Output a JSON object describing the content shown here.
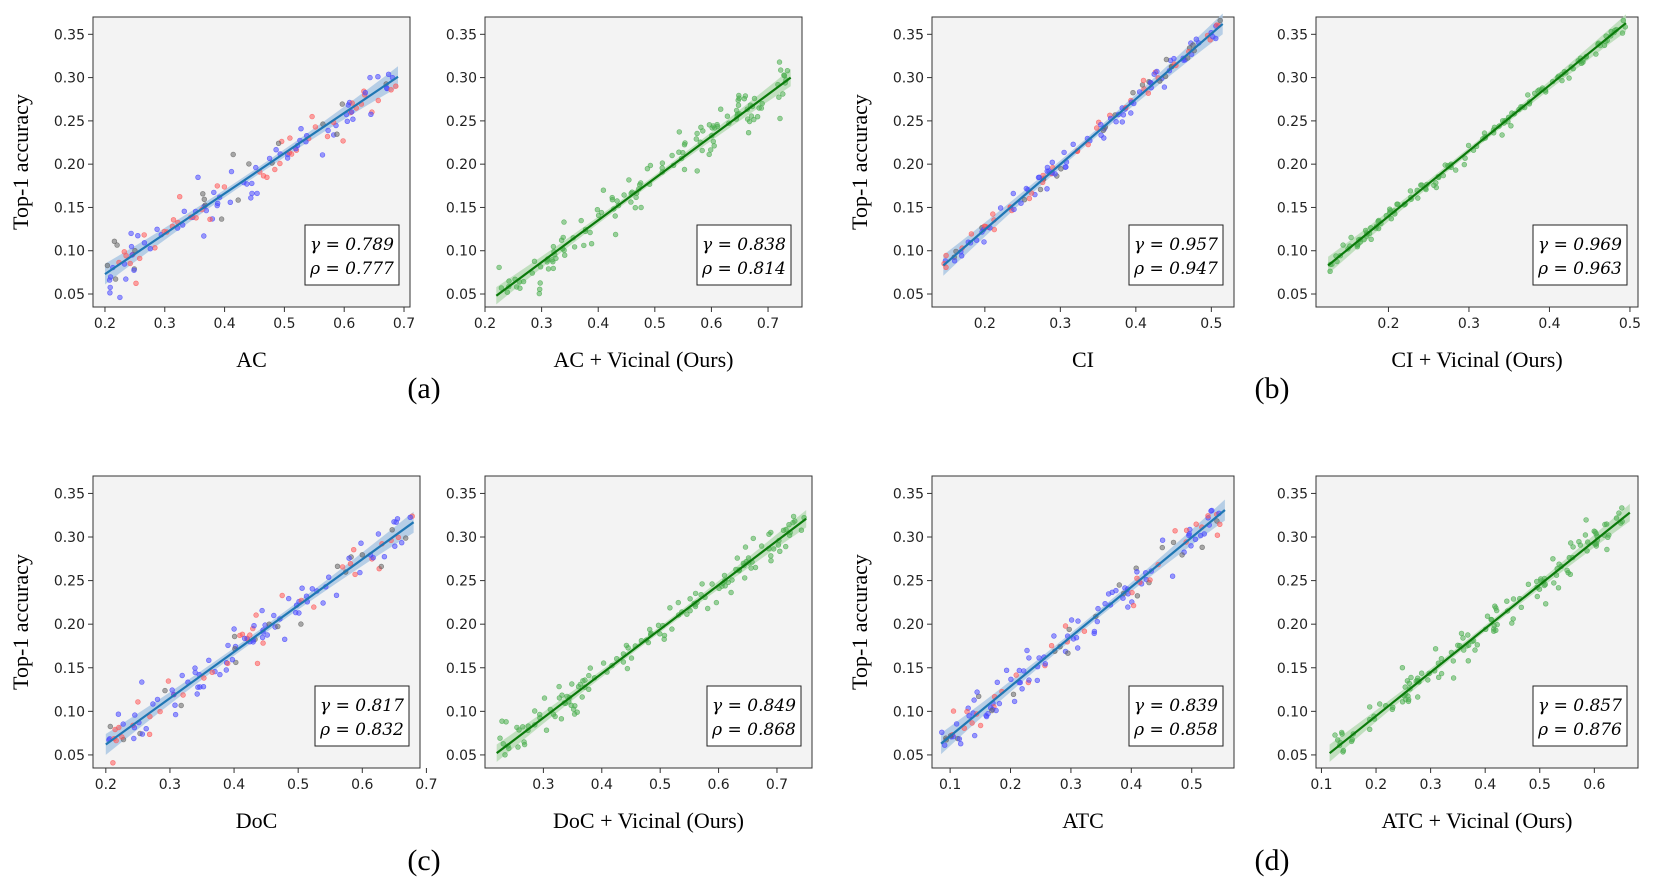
{
  "figure": {
    "panel_labels": [
      "(a)",
      "(b)",
      "(c)",
      "(d)"
    ],
    "y_axis_label": "Top-1 accuracy",
    "colors": {
      "baseline_fit": "#1f77b4",
      "baseline_band": "#aac7e3",
      "vicinal_fit": "#0b7a0b",
      "vicinal_band": "#b7dbb5",
      "points_blue": "#4a4aff",
      "points_red": "#ff5a5a",
      "points_gray": "#666666",
      "points_green": "#4caf50",
      "panel_bg": "#f3f3f3"
    }
  },
  "chart_data": [
    {
      "type": "scatter",
      "xlabel": "AC",
      "ylabel": "Top-1 accuracy",
      "xlim": [
        0.18,
        0.71
      ],
      "ylim": [
        0.035,
        0.37
      ],
      "xticks": [
        0.2,
        0.3,
        0.4,
        0.5,
        0.6,
        0.7
      ],
      "xtick_labels": [
        "0.2",
        "0.3",
        "0.4",
        "0.5",
        "0.6",
        "0.7"
      ],
      "yticks": [
        0.05,
        0.1,
        0.15,
        0.2,
        0.25,
        0.3,
        0.35
      ],
      "ytick_labels": [
        "0.05",
        "0.10",
        "0.15",
        "0.20",
        "0.25",
        "0.30",
        "0.35"
      ],
      "fit": {
        "x": [
          0.2,
          0.69
        ],
        "y": [
          0.073,
          0.301
        ]
      },
      "gamma": "0.789",
      "rho": "0.777",
      "stats": [
        "γ = 0.789",
        "ρ = 0.777"
      ],
      "style": "baseline",
      "seed": 11
    },
    {
      "type": "scatter",
      "xlabel": "AC + Vicinal (Ours)",
      "ylabel": "",
      "xlim": [
        0.2,
        0.76
      ],
      "ylim": [
        0.035,
        0.37
      ],
      "xticks": [
        0.2,
        0.3,
        0.4,
        0.5,
        0.6,
        0.7
      ],
      "xtick_labels": [
        "0.2",
        "0.3",
        "0.4",
        "0.5",
        "0.6",
        "0.7"
      ],
      "yticks": [
        0.05,
        0.1,
        0.15,
        0.2,
        0.25,
        0.3,
        0.35
      ],
      "ytick_labels": [
        "0.05",
        "0.10",
        "0.15",
        "0.20",
        "0.25",
        "0.30",
        "0.35"
      ],
      "fit": {
        "x": [
          0.22,
          0.74
        ],
        "y": [
          0.048,
          0.3
        ]
      },
      "gamma": "0.838",
      "rho": "0.814",
      "stats": [
        "γ = 0.838",
        "ρ = 0.814"
      ],
      "style": "vicinal",
      "seed": 12
    },
    {
      "type": "scatter",
      "xlabel": "CI",
      "ylabel": "Top-1 accuracy",
      "xlim": [
        0.13,
        0.53
      ],
      "ylim": [
        0.035,
        0.37
      ],
      "xticks": [
        0.2,
        0.3,
        0.4,
        0.5
      ],
      "xtick_labels": [
        "0.2",
        "0.3",
        "0.4",
        "0.5"
      ],
      "yticks": [
        0.05,
        0.1,
        0.15,
        0.2,
        0.25,
        0.3,
        0.35
      ],
      "ytick_labels": [
        "0.05",
        "0.10",
        "0.15",
        "0.20",
        "0.25",
        "0.30",
        "0.35"
      ],
      "fit": {
        "x": [
          0.145,
          0.515
        ],
        "y": [
          0.083,
          0.362
        ]
      },
      "gamma": "0.957",
      "rho": "0.947",
      "stats": [
        "γ = 0.957",
        "ρ = 0.947"
      ],
      "style": "baseline",
      "seed": 13
    },
    {
      "type": "scatter",
      "xlabel": "CI + Vicinal (Ours)",
      "ylabel": "",
      "xlim": [
        0.11,
        0.51
      ],
      "ylim": [
        0.035,
        0.37
      ],
      "xticks": [
        0.2,
        0.3,
        0.4,
        0.5
      ],
      "xtick_labels": [
        "0.2",
        "0.3",
        "0.4",
        "0.5"
      ],
      "yticks": [
        0.05,
        0.1,
        0.15,
        0.2,
        0.25,
        0.3,
        0.35
      ],
      "ytick_labels": [
        "0.05",
        "0.10",
        "0.15",
        "0.20",
        "0.25",
        "0.30",
        "0.35"
      ],
      "fit": {
        "x": [
          0.125,
          0.495
        ],
        "y": [
          0.083,
          0.363
        ]
      },
      "gamma": "0.969",
      "rho": "0.963",
      "stats": [
        "γ = 0.969",
        "ρ = 0.963"
      ],
      "style": "vicinal",
      "seed": 14
    },
    {
      "type": "scatter",
      "xlabel": "DoC",
      "ylabel": "Top-1 accuracy",
      "xlim": [
        0.18,
        0.69
      ],
      "ylim": [
        0.035,
        0.37
      ],
      "xticks": [
        0.2,
        0.3,
        0.4,
        0.5,
        0.6,
        0.7
      ],
      "xtick_labels": [
        "0.2",
        "0.3",
        "0.4",
        "0.5",
        "0.6",
        "0.7"
      ],
      "yticks": [
        0.05,
        0.1,
        0.15,
        0.2,
        0.25,
        0.3,
        0.35
      ],
      "ytick_labels": [
        "0.05",
        "0.10",
        "0.15",
        "0.20",
        "0.25",
        "0.30",
        "0.35"
      ],
      "fit": {
        "x": [
          0.2,
          0.68
        ],
        "y": [
          0.062,
          0.317
        ]
      },
      "gamma": "0.817",
      "rho": "0.832",
      "stats": [
        "γ = 0.817",
        "ρ = 0.832"
      ],
      "style": "baseline",
      "seed": 15
    },
    {
      "type": "scatter",
      "xlabel": "DoC + Vicinal (Ours)",
      "ylabel": "",
      "xlim": [
        0.2,
        0.76
      ],
      "ylim": [
        0.035,
        0.37
      ],
      "xticks": [
        0.3,
        0.4,
        0.5,
        0.6,
        0.7
      ],
      "xtick_labels": [
        "0.3",
        "0.4",
        "0.5",
        "0.6",
        "0.7"
      ],
      "yticks": [
        0.05,
        0.1,
        0.15,
        0.2,
        0.25,
        0.3,
        0.35
      ],
      "ytick_labels": [
        "0.05",
        "0.10",
        "0.15",
        "0.20",
        "0.25",
        "0.30",
        "0.35"
      ],
      "fit": {
        "x": [
          0.22,
          0.75
        ],
        "y": [
          0.052,
          0.321
        ]
      },
      "gamma": "0.849",
      "rho": "0.868",
      "stats": [
        "γ = 0.849",
        "ρ = 0.868"
      ],
      "style": "vicinal",
      "seed": 16
    },
    {
      "type": "scatter",
      "xlabel": "ATC",
      "ylabel": "Top-1 accuracy",
      "xlim": [
        0.07,
        0.57
      ],
      "ylim": [
        0.035,
        0.37
      ],
      "xticks": [
        0.1,
        0.2,
        0.3,
        0.4,
        0.5
      ],
      "xtick_labels": [
        "0.1",
        "0.2",
        "0.3",
        "0.4",
        "0.5"
      ],
      "yticks": [
        0.05,
        0.1,
        0.15,
        0.2,
        0.25,
        0.3,
        0.35
      ],
      "ytick_labels": [
        "0.05",
        "0.10",
        "0.15",
        "0.20",
        "0.25",
        "0.30",
        "0.35"
      ],
      "fit": {
        "x": [
          0.085,
          0.555
        ],
        "y": [
          0.063,
          0.331
        ]
      },
      "gamma": "0.839",
      "rho": "0.858",
      "stats": [
        "γ = 0.839",
        "ρ = 0.858"
      ],
      "style": "baseline",
      "seed": 17
    },
    {
      "type": "scatter",
      "xlabel": "ATC + Vicinal (Ours)",
      "ylabel": "",
      "xlim": [
        0.09,
        0.68
      ],
      "ylim": [
        0.035,
        0.37
      ],
      "xticks": [
        0.1,
        0.2,
        0.3,
        0.4,
        0.5,
        0.6
      ],
      "xtick_labels": [
        "0.1",
        "0.2",
        "0.3",
        "0.4",
        "0.5",
        "0.6"
      ],
      "yticks": [
        0.05,
        0.1,
        0.15,
        0.2,
        0.25,
        0.3,
        0.35
      ],
      "ytick_labels": [
        "0.05",
        "0.10",
        "0.15",
        "0.20",
        "0.25",
        "0.30",
        "0.35"
      ],
      "fit": {
        "x": [
          0.115,
          0.665
        ],
        "y": [
          0.052,
          0.328
        ]
      },
      "gamma": "0.857",
      "rho": "0.876",
      "stats": [
        "γ = 0.857",
        "ρ = 0.876"
      ],
      "style": "vicinal",
      "seed": 18
    }
  ]
}
